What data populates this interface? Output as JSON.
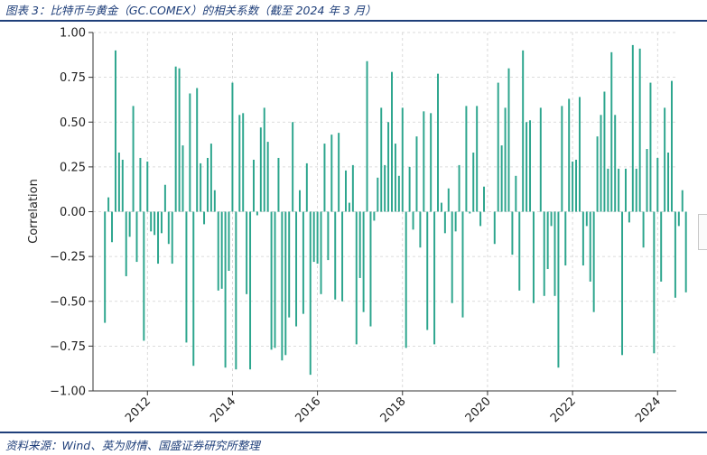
{
  "figure": {
    "caption": "图表 3：比特币与黄金（GC.COMEX）的相关系数（截至 2024 年 3 月）",
    "source": "资料来源：Wind、英为财情、国盛证券研究所整理"
  },
  "colors": {
    "bar": "#2ca58d",
    "caption": "#1f3f7a",
    "grid": "#d0d0d0"
  },
  "chart_data": {
    "type": "bar",
    "title": "",
    "xlabel": "",
    "ylabel": "Correlation",
    "ylim": [
      -1.0,
      1.0
    ],
    "xlim": [
      2010.72,
      2024.44
    ],
    "yticks": [
      -1.0,
      -0.75,
      -0.5,
      -0.25,
      0.0,
      0.25,
      0.5,
      0.75,
      1.0
    ],
    "ytick_labels": [
      "−1.00",
      "−0.75",
      "−0.50",
      "−0.25",
      "0.00",
      "0.25",
      "0.50",
      "0.75",
      "1.00"
    ],
    "xticks": [
      2012,
      2014,
      2016,
      2018,
      2020,
      2022,
      2024
    ],
    "xtick_labels": [
      "2012",
      "2014",
      "2016",
      "2018",
      "2020",
      "2022",
      "2024"
    ],
    "grid": true,
    "series": [
      {
        "x_start": "2011-01",
        "frequency": "monthly",
        "values": [
          -0.62,
          0.08,
          -0.17,
          0.9,
          0.33,
          0.29,
          -0.36,
          -0.14,
          0.59,
          -0.28,
          0.3,
          -0.72,
          0.28,
          -0.11,
          -0.13,
          -0.29,
          -0.12,
          0.15,
          -0.18,
          -0.29,
          0.81,
          0.8,
          0.37,
          -0.73,
          0.66,
          -0.86,
          0.69,
          0.27,
          -0.07,
          0.3,
          0.38,
          0.12,
          -0.44,
          -0.43,
          -0.87,
          -0.33,
          0.72,
          -0.88,
          0.54,
          0.55,
          -0.46,
          -0.88,
          0.29,
          -0.02,
          0.47,
          0.58,
          0.39,
          -0.77,
          -0.76,
          0.3,
          -0.83,
          -0.8,
          -0.59,
          0.5,
          -0.64,
          0.12,
          -0.57,
          0.27,
          -0.91,
          -0.28,
          -0.29,
          -0.46,
          0.38,
          -0.27,
          0.43,
          -0.49,
          0.44,
          -0.5,
          0.23,
          0.05,
          0.26,
          -0.74,
          -0.37,
          -0.56,
          0.84,
          -0.64,
          -0.05,
          0.19,
          0.58,
          0.26,
          0.5,
          0.78,
          0.38,
          0.2,
          0.58,
          -0.76,
          0.25,
          -0.1,
          0.42,
          -0.2,
          0.56,
          -0.66,
          0.55,
          -0.74,
          0.77,
          0.05,
          -0.12,
          0.13,
          -0.51,
          -0.11,
          0.26,
          -0.59,
          0.59,
          -0.01,
          0.33,
          0.59,
          -0.08,
          0.14,
          0.0,
          0.0,
          -0.18,
          0.72,
          0.37,
          0.58,
          0.8,
          -0.24,
          0.2,
          -0.44,
          0.9,
          0.5,
          0.51,
          -0.51,
          0.0,
          0.58,
          -0.47,
          -0.32,
          -0.08,
          -0.47,
          -0.87,
          0.59,
          -0.3,
          0.63,
          0.28,
          0.29,
          0.64,
          -0.3,
          -0.08,
          -0.39,
          -0.56,
          0.42,
          0.54,
          0.67,
          0.24,
          0.89,
          0.54,
          0.24,
          -0.8,
          0.24,
          -0.06,
          0.93,
          0.24,
          0.91,
          -0.2,
          0.35,
          0.72,
          -0.79,
          0.3,
          -0.39,
          0.58,
          0.33,
          0.73,
          -0.48,
          -0.08,
          0.12,
          -0.45
        ]
      }
    ]
  }
}
